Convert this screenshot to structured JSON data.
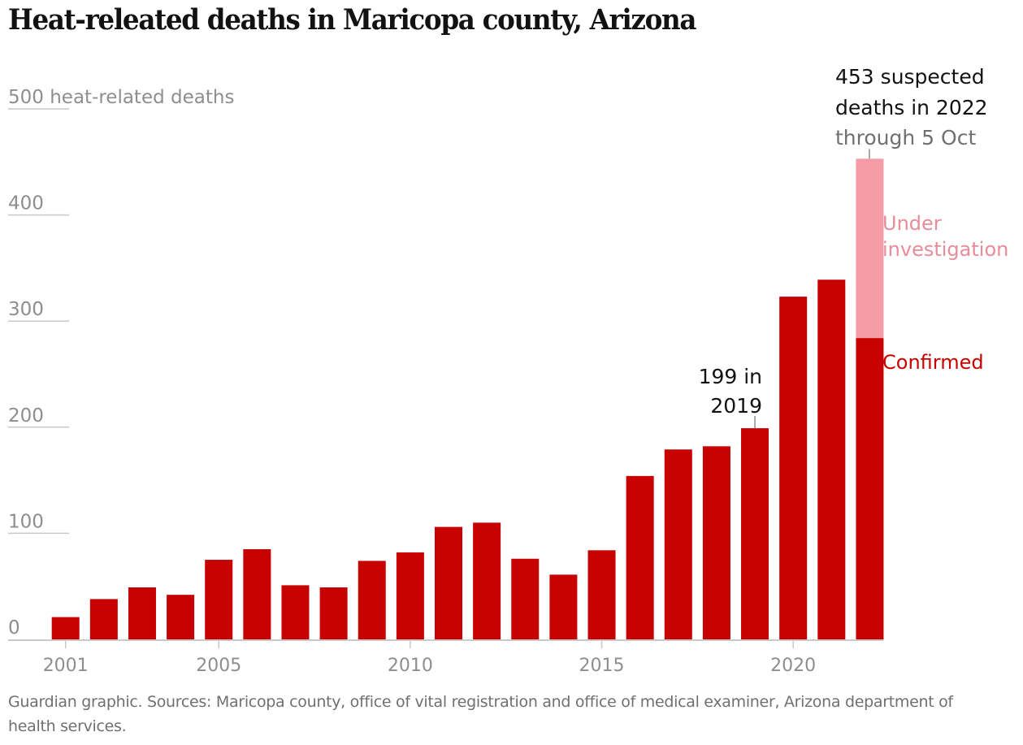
{
  "chart_data": {
    "type": "bar",
    "stacked": true,
    "title": "Heat-releated deaths in Maricopa county, Arizona",
    "ylabel": "heat-related deaths",
    "ylim": [
      0,
      500
    ],
    "yticks": [
      0,
      100,
      200,
      300,
      400,
      500
    ],
    "ytick_labels": [
      "0",
      "100",
      "200",
      "300",
      "400",
      "500 heat-related deaths"
    ],
    "xticks": [
      "2001",
      "2005",
      "2010",
      "2015",
      "2020"
    ],
    "grid": true,
    "categories": [
      "2001",
      "2002",
      "2003",
      "2004",
      "2005",
      "2006",
      "2007",
      "2008",
      "2009",
      "2010",
      "2011",
      "2012",
      "2013",
      "2014",
      "2015",
      "2016",
      "2017",
      "2018",
      "2019",
      "2020",
      "2021",
      "2022"
    ],
    "series": [
      {
        "name": "Confirmed",
        "color": "#c70000",
        "values": [
          21,
          38,
          49,
          42,
          75,
          85,
          51,
          49,
          74,
          82,
          106,
          110,
          76,
          61,
          84,
          154,
          179,
          182,
          199,
          323,
          339,
          284
        ]
      },
      {
        "name": "Under investigation",
        "color": "#f59ca6",
        "values": [
          0,
          0,
          0,
          0,
          0,
          0,
          0,
          0,
          0,
          0,
          0,
          0,
          0,
          0,
          0,
          0,
          0,
          0,
          0,
          0,
          0,
          169
        ]
      }
    ],
    "annotations": [
      {
        "category": "2019",
        "lines": [
          "199 in",
          "2019"
        ],
        "style": "dark"
      },
      {
        "category": "2022",
        "lines": [
          "453 suspected",
          "deaths in 2022"
        ],
        "subline": "through 5 Oct",
        "style": "dark"
      }
    ],
    "legend": [
      {
        "label_lines": [
          "Under",
          "investigation"
        ],
        "series": "Under investigation",
        "color": "#e88c9a"
      },
      {
        "label_lines": [
          "Confirmed"
        ],
        "series": "Confirmed",
        "color": "#c70000"
      }
    ],
    "legend_placement": "right, inline beside last bar",
    "source": "Guardian graphic. Sources: Maricopa county, office of vital registration and office of medical examiner, Arizona department of health services."
  }
}
